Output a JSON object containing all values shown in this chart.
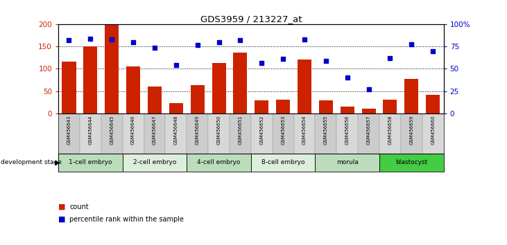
{
  "title": "GDS3959 / 213227_at",
  "samples": [
    "GSM456643",
    "GSM456644",
    "GSM456645",
    "GSM456646",
    "GSM456647",
    "GSM456648",
    "GSM456649",
    "GSM456650",
    "GSM456651",
    "GSM456652",
    "GSM456653",
    "GSM456654",
    "GSM456655",
    "GSM456656",
    "GSM456657",
    "GSM456658",
    "GSM456659",
    "GSM456660"
  ],
  "counts": [
    116,
    150,
    200,
    106,
    60,
    23,
    64,
    114,
    136,
    29,
    31,
    121,
    29,
    15,
    10,
    30,
    77,
    41
  ],
  "percentiles": [
    82,
    84,
    83,
    80,
    74,
    54,
    77,
    80,
    82,
    57,
    61,
    83,
    59,
    40,
    27,
    62,
    78,
    70
  ],
  "stages": [
    {
      "label": "1-cell embryo",
      "start": 0,
      "end": 3,
      "color": "#bbddbb"
    },
    {
      "label": "2-cell embryo",
      "start": 3,
      "end": 6,
      "color": "#ddeedd"
    },
    {
      "label": "4-cell embryo",
      "start": 6,
      "end": 9,
      "color": "#bbddbb"
    },
    {
      "label": "8-cell embryo",
      "start": 9,
      "end": 12,
      "color": "#ddeedd"
    },
    {
      "label": "morula",
      "start": 12,
      "end": 15,
      "color": "#bbddbb"
    },
    {
      "label": "blastocyst",
      "start": 15,
      "end": 18,
      "color": "#44cc44"
    }
  ],
  "bar_color": "#cc2200",
  "dot_color": "#0000cc",
  "ylim_left": [
    0,
    200
  ],
  "ylim_right": [
    0,
    100
  ],
  "yticks_left": [
    0,
    50,
    100,
    150,
    200
  ],
  "yticks_right": [
    0,
    25,
    50,
    75,
    100
  ],
  "yticklabels_right": [
    "0",
    "25",
    "50",
    "75",
    "100%"
  ],
  "ylabel_left_color": "#cc2200",
  "ylabel_right_color": "#0000cc",
  "background_color": "#ffffff",
  "grid_color": "black"
}
